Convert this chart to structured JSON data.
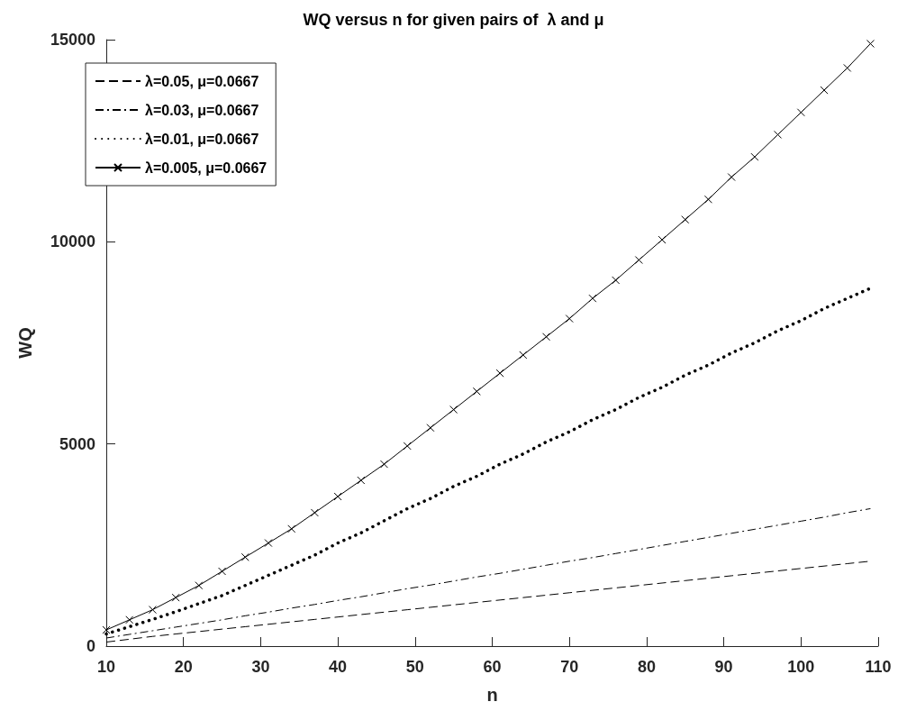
{
  "chart_data": {
    "type": "line",
    "title": "WQ versus n for given pairs of  λ and μ",
    "xlabel": "n",
    "ylabel": "WQ",
    "x": [
      10,
      13,
      16,
      19,
      22,
      25,
      28,
      31,
      34,
      37,
      40,
      43,
      46,
      49,
      52,
      55,
      58,
      61,
      64,
      67,
      70,
      73,
      76,
      79,
      82,
      85,
      88,
      91,
      94,
      97,
      100,
      103,
      106,
      109
    ],
    "series": [
      {
        "name": "λ=0.05, μ=0.0667",
        "color": "#000000",
        "line_style": "dashed",
        "marker": "none",
        "values": [
          100,
          170,
          240,
          300,
          360,
          420,
          480,
          540,
          600,
          660,
          720,
          780,
          840,
          900,
          960,
          1020,
          1080,
          1140,
          1200,
          1260,
          1320,
          1380,
          1440,
          1500,
          1560,
          1620,
          1680,
          1740,
          1800,
          1860,
          1920,
          1980,
          2040,
          2100
        ]
      },
      {
        "name": "λ=0.03, μ=0.0667",
        "color": "#000000",
        "line_style": "dashdot",
        "marker": "none",
        "values": [
          200,
          290,
          380,
          470,
          560,
          650,
          750,
          840,
          940,
          1030,
          1130,
          1220,
          1320,
          1420,
          1510,
          1610,
          1710,
          1800,
          1900,
          2000,
          2100,
          2190,
          2290,
          2390,
          2490,
          2590,
          2690,
          2790,
          2890,
          2990,
          3090,
          3190,
          3300,
          3400
        ]
      },
      {
        "name": "λ=0.01, μ=0.0667",
        "color": "#000000",
        "line_style": "dotted",
        "marker": "none",
        "values": [
          300,
          480,
          660,
          850,
          1050,
          1250,
          1500,
          1750,
          2000,
          2250,
          2550,
          2800,
          3100,
          3400,
          3650,
          3950,
          4200,
          4500,
          4750,
          5050,
          5300,
          5600,
          5850,
          6150,
          6400,
          6700,
          6950,
          7250,
          7500,
          7800,
          8050,
          8350,
          8600,
          8850
        ]
      },
      {
        "name": "λ=0.005, μ=0.0667",
        "color": "#000000",
        "line_style": "solid",
        "marker": "cross",
        "values": [
          400,
          650,
          900,
          1200,
          1500,
          1850,
          2200,
          2550,
          2900,
          3300,
          3700,
          4100,
          4500,
          4950,
          5400,
          5850,
          6300,
          6750,
          7200,
          7650,
          8100,
          8600,
          9050,
          9550,
          10050,
          10550,
          11050,
          11600,
          12100,
          12650,
          13200,
          13750,
          14300,
          14900
        ]
      }
    ],
    "xlim": [
      10,
      110
    ],
    "xticks": [
      10,
      20,
      30,
      40,
      50,
      60,
      70,
      80,
      90,
      100,
      110
    ],
    "ylim": [
      0,
      15000
    ],
    "yticks": [
      0,
      5000,
      10000,
      15000
    ],
    "grid": false,
    "legend": "top left"
  }
}
